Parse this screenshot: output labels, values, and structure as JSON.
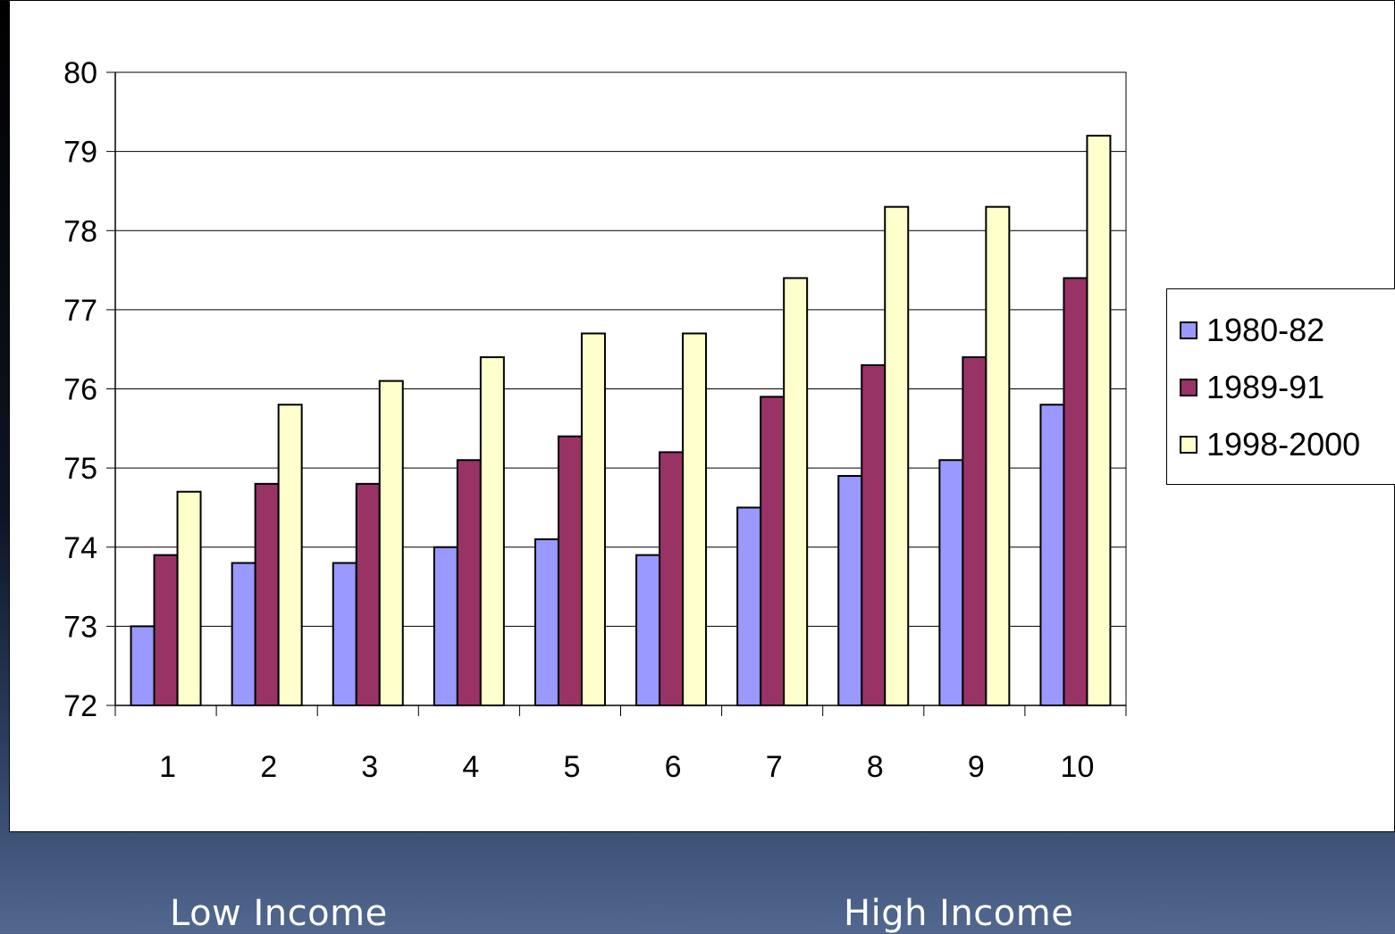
{
  "chart_data": {
    "type": "bar",
    "categories": [
      "1",
      "2",
      "3",
      "4",
      "5",
      "6",
      "7",
      "8",
      "9",
      "10"
    ],
    "series": [
      {
        "name": "1980-82",
        "color": "#9999ff",
        "values": [
          73.0,
          73.8,
          73.8,
          74.0,
          74.1,
          73.9,
          74.5,
          74.9,
          75.1,
          75.8
        ]
      },
      {
        "name": "1989-91",
        "color": "#993366",
        "values": [
          73.9,
          74.8,
          74.8,
          75.1,
          75.4,
          75.2,
          75.9,
          76.3,
          76.4,
          77.4
        ]
      },
      {
        "name": "1998-2000",
        "color": "#ffffcc",
        "values": [
          74.7,
          75.8,
          76.1,
          76.4,
          76.7,
          76.7,
          77.4,
          78.3,
          78.3,
          79.2
        ]
      }
    ],
    "ylim": [
      72,
      80
    ],
    "yticks": [
      "72",
      "73",
      "74",
      "75",
      "76",
      "77",
      "78",
      "79",
      "80"
    ],
    "grid": true,
    "legend_position": "right"
  },
  "footer": {
    "low_label": "Low Income",
    "high_label": "High Income"
  }
}
